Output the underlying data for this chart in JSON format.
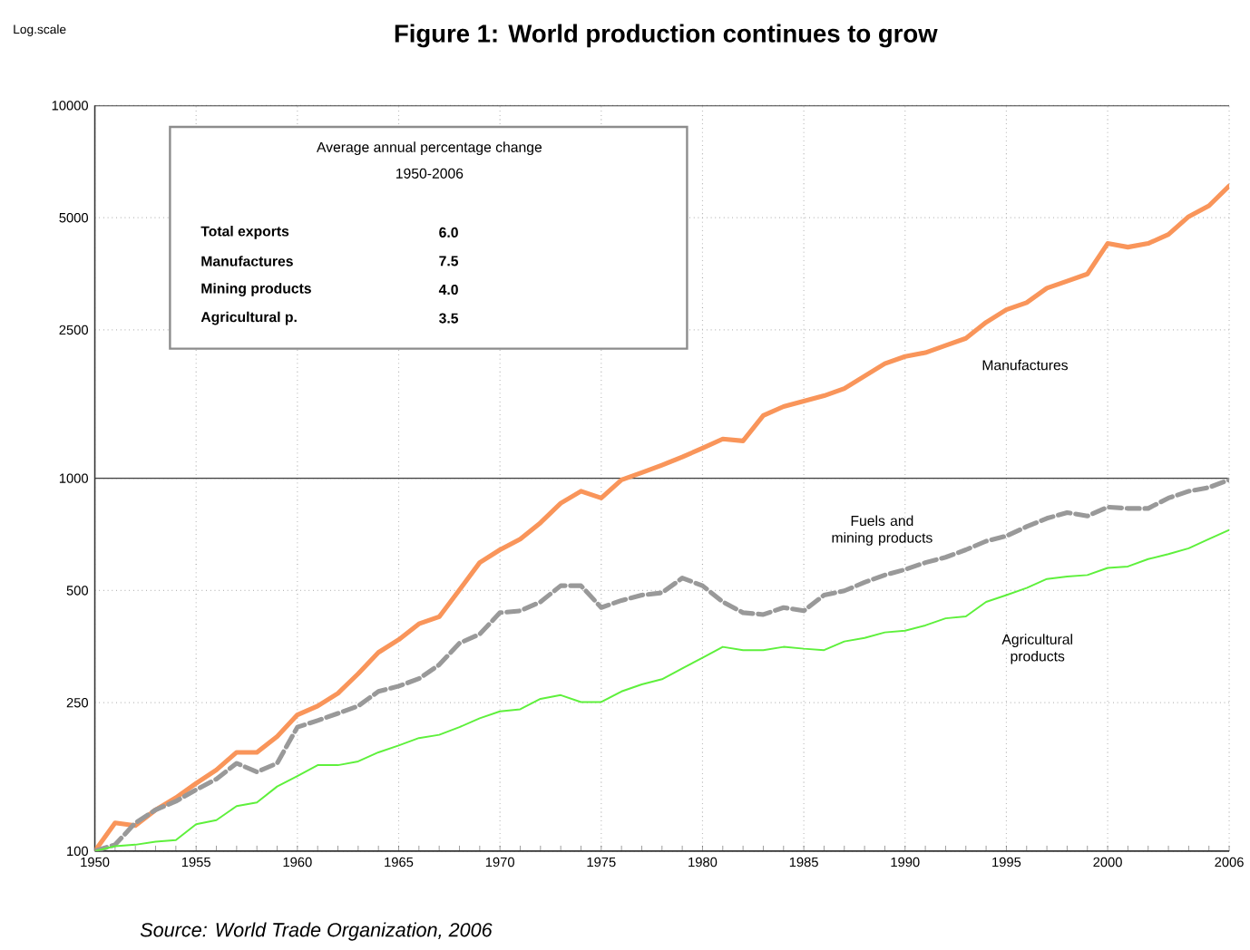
{
  "chart_data": {
    "type": "line",
    "title": "Figure 1: World production continues to grow",
    "x": [
      1950,
      1951,
      1952,
      1953,
      1954,
      1955,
      1956,
      1957,
      1958,
      1959,
      1960,
      1961,
      1962,
      1963,
      1964,
      1965,
      1966,
      1967,
      1968,
      1969,
      1970,
      1971,
      1972,
      1973,
      1974,
      1975,
      1976,
      1977,
      1978,
      1979,
      1980,
      1981,
      1982,
      1983,
      1984,
      1985,
      1986,
      1987,
      1988,
      1989,
      1990,
      1991,
      1992,
      1993,
      1994,
      1995,
      1996,
      1997,
      1998,
      1999,
      2000,
      2001,
      2002,
      2003,
      2004,
      2005,
      2006
    ],
    "series": [
      {
        "name": "Manufactures",
        "color": "#f9955a",
        "line_style": "solid",
        "values": [
          100,
          119,
          117,
          129,
          139,
          152,
          165,
          184,
          184,
          203,
          232,
          245,
          265,
          299,
          341,
          369,
          407,
          425,
          502,
          594,
          643,
          687,
          760,
          857,
          923,
          885,
          990,
          1035,
          1085,
          1140,
          1205,
          1275,
          1260,
          1473,
          1557,
          1610,
          1665,
          1740,
          1880,
          2030,
          2122,
          2172,
          2270,
          2373,
          2620,
          2832,
          2960,
          3235,
          3380,
          3532,
          4264,
          4169,
          4264,
          4508,
          5036,
          5381,
          6082
        ]
      },
      {
        "name": "Fuels and mining products",
        "color": "#999999",
        "line_style": "dashed",
        "values": [
          100,
          104,
          119,
          129,
          136,
          146,
          156,
          172,
          163,
          172,
          215,
          224,
          234,
          245,
          268,
          277,
          290,
          316,
          361,
          382,
          436,
          441,
          466,
          515,
          515,
          450,
          470,
          486,
          493,
          540,
          515,
          466,
          436,
          431,
          450,
          441,
          486,
          499,
          526,
          550,
          569,
          594,
          614,
          643,
          678,
          700,
          742,
          781,
          809,
          792,
          837,
          830,
          830,
          885,
          923,
          945,
          990
        ]
      },
      {
        "name": "Agricultural products",
        "color": "#5ef03c",
        "line_style": "solid",
        "values": [
          100,
          103,
          104,
          106,
          107,
          118,
          121,
          132,
          135,
          149,
          159,
          170,
          170,
          174,
          184,
          192,
          201,
          205,
          215,
          227,
          237,
          240,
          256,
          262,
          251,
          251,
          268,
          280,
          289,
          309,
          330,
          353,
          346,
          346,
          353,
          349,
          346,
          365,
          373,
          386,
          390,
          403,
          421,
          426,
          466,
          486,
          508,
          537,
          545,
          550,
          575,
          580,
          607,
          626,
          649,
          687,
          727
        ]
      }
    ],
    "log": "y",
    "xlim": [
      1950,
      2006
    ],
    "ylim": [
      100,
      10000
    ],
    "xticks": [
      1950,
      1955,
      1960,
      1965,
      1970,
      1975,
      1980,
      1985,
      1990,
      1995,
      2000,
      2006
    ],
    "yticks": [
      100,
      250,
      500,
      1000,
      2500,
      5000,
      10000
    ],
    "grid": true,
    "marker": "none",
    "ref_lines": [
      {
        "axis": "y",
        "value": 1000
      }
    ],
    "annotations": [
      "Log.scale",
      "Average annual percentage change",
      "1950-2006",
      "Total exports",
      "6.0",
      "Manufactures",
      "7.5",
      "Mining products",
      "4.0",
      "Agricultural p.",
      "3.5",
      "Source: World Trade Organization, 2006"
    ]
  }
}
